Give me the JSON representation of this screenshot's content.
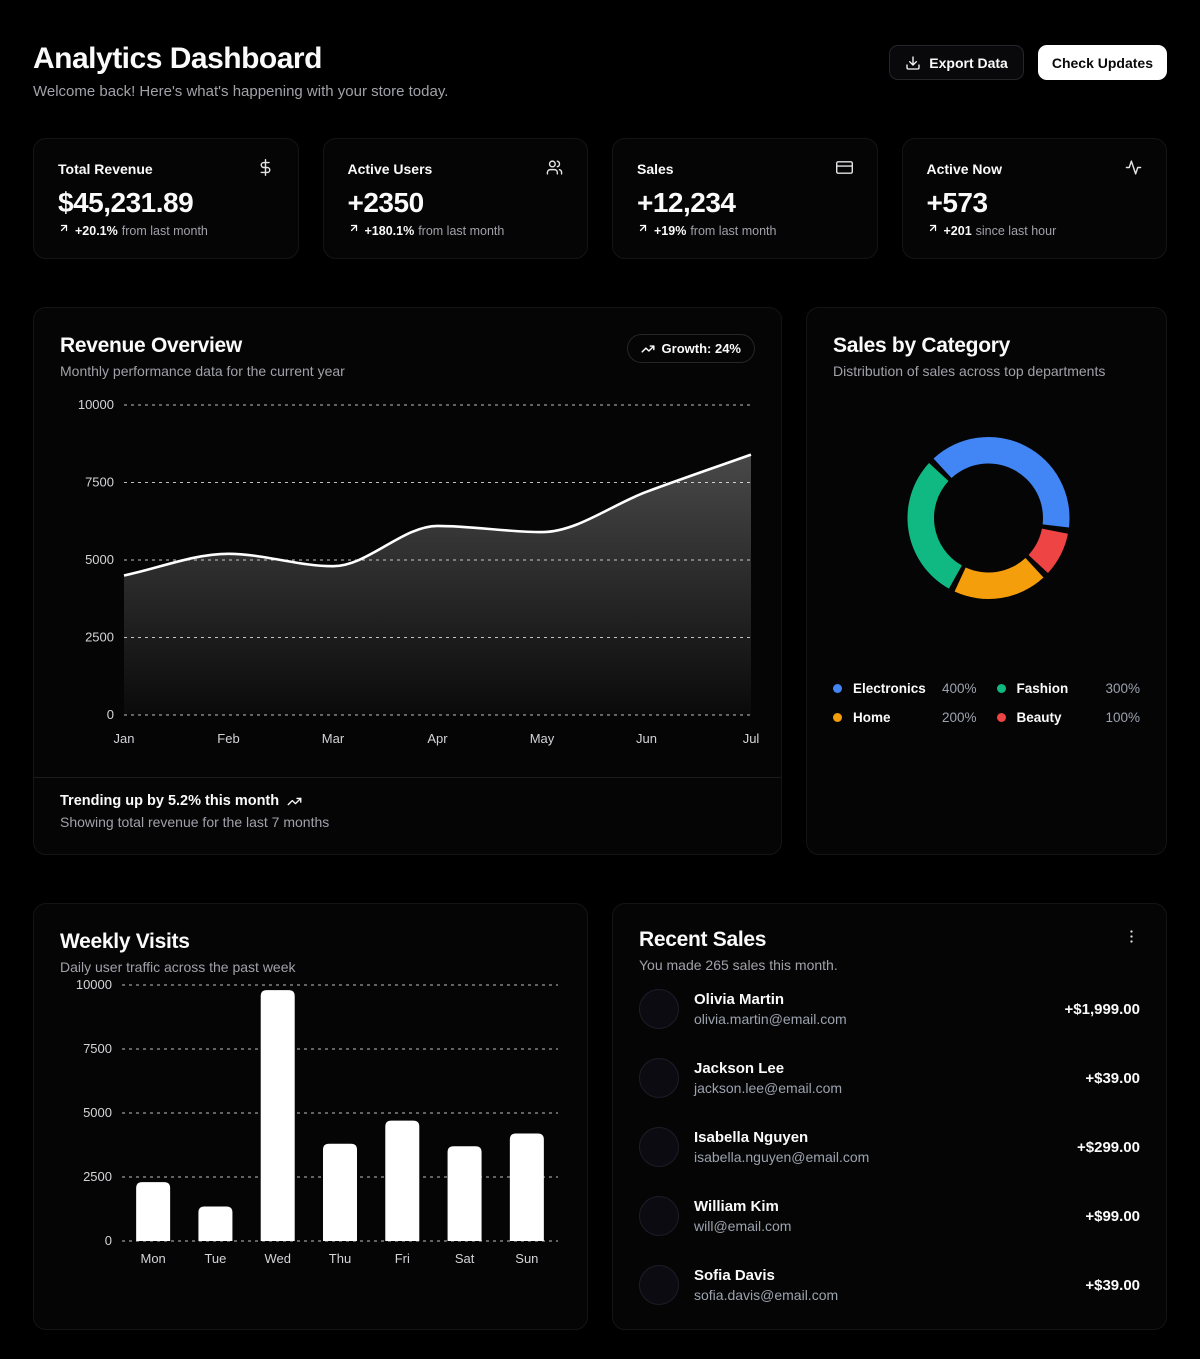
{
  "header": {
    "title": "Analytics Dashboard",
    "subtitle": "Welcome back! Here's what's happening with your store today.",
    "export_label": "Export Data",
    "check_updates_label": "Check Updates"
  },
  "stats": [
    {
      "label": "Total Revenue",
      "icon": "dollar-sign-icon",
      "value": "$45,231.89",
      "delta": "+20.1%",
      "note": "from last month"
    },
    {
      "label": "Active Users",
      "icon": "users-icon",
      "value": "+2350",
      "delta": "+180.1%",
      "note": "from last month"
    },
    {
      "label": "Sales",
      "icon": "credit-card-icon",
      "value": "+12,234",
      "delta": "+19%",
      "note": "from last month"
    },
    {
      "label": "Active Now",
      "icon": "activity-icon",
      "value": "+573",
      "delta": "+201",
      "note": "since last hour"
    }
  ],
  "revenue_overview": {
    "title": "Revenue Overview",
    "subtitle": "Monthly performance data for the current year",
    "badge": "Growth: 24%",
    "footer_title": "Trending up by 5.2% this month",
    "footer_subtitle": "Showing total revenue for the last 7 months"
  },
  "sales_by_category": {
    "title": "Sales by Category",
    "subtitle": "Distribution of sales across top departments"
  },
  "weekly_visits": {
    "title": "Weekly Visits",
    "subtitle": "Daily user traffic across the past week"
  },
  "recent_sales": {
    "title": "Recent Sales",
    "subtitle": "You made 265 sales this month.",
    "items": [
      {
        "name": "Olivia Martin",
        "email": "olivia.martin@email.com",
        "amount": "+$1,999.00"
      },
      {
        "name": "Jackson Lee",
        "email": "jackson.lee@email.com",
        "amount": "+$39.00"
      },
      {
        "name": "Isabella Nguyen",
        "email": "isabella.nguyen@email.com",
        "amount": "+$299.00"
      },
      {
        "name": "William Kim",
        "email": "will@email.com",
        "amount": "+$99.00"
      },
      {
        "name": "Sofia Davis",
        "email": "sofia.davis@email.com",
        "amount": "+$39.00"
      }
    ]
  },
  "chart_data": [
    {
      "type": "area",
      "title": "Revenue Overview",
      "x": [
        "Jan",
        "Feb",
        "Mar",
        "Apr",
        "May",
        "Jun",
        "Jul"
      ],
      "values": [
        4500,
        5200,
        4800,
        6100,
        5900,
        7200,
        8400
      ],
      "ylim": [
        0,
        10000
      ],
      "yticks": [
        0,
        2500,
        5000,
        7500,
        10000
      ],
      "grid": "dashed-horizontal",
      "line_color": "#ffffff",
      "legend_position": "none"
    },
    {
      "type": "pie",
      "title": "Sales by Category",
      "labels": [
        "Electronics",
        "Fashion",
        "Home",
        "Beauty"
      ],
      "values": [
        400,
        300,
        200,
        100
      ],
      "display_values": [
        "400%",
        "300%",
        "200%",
        "100%"
      ],
      "colors": [
        "#4285f4",
        "#10b981",
        "#f59e0b",
        "#ef4444"
      ],
      "donut": true,
      "clockwise_order": [
        0,
        3,
        2,
        1
      ],
      "start_angle_deg": 315,
      "pad_angle_deg": 4.5
    },
    {
      "type": "bar",
      "title": "Weekly Visits",
      "categories": [
        "Mon",
        "Tue",
        "Wed",
        "Thu",
        "Fri",
        "Sat",
        "Sun"
      ],
      "values": [
        2300,
        1350,
        9800,
        3800,
        4700,
        3700,
        4200
      ],
      "ylim": [
        0,
        10000
      ],
      "yticks": [
        0,
        2500,
        5000,
        7500,
        10000
      ],
      "bar_color": "#ffffff",
      "grid": "dashed-horizontal"
    }
  ]
}
